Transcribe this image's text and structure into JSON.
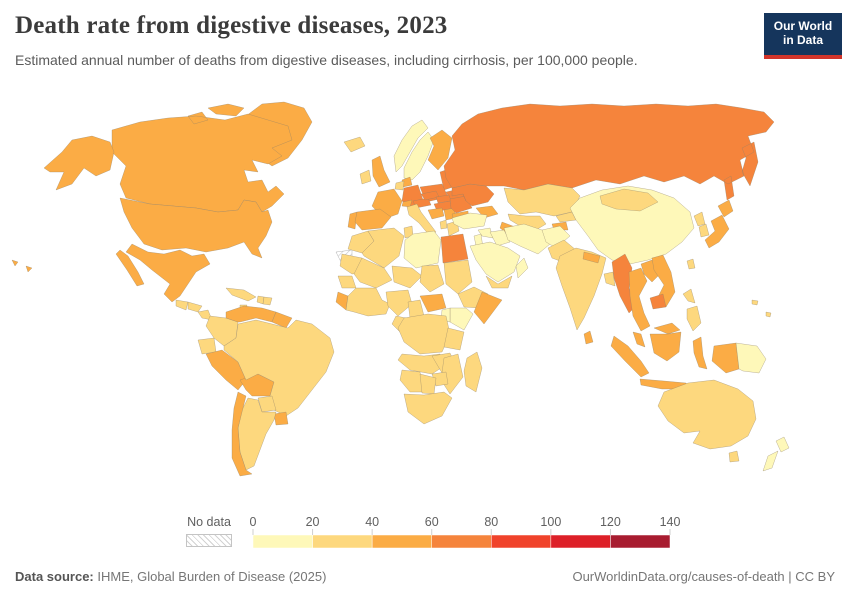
{
  "header": {
    "title": "Death rate from digestive diseases, 2023",
    "subtitle": "Estimated annual number of deaths from digestive diseases, including cirrhosis, per 100,000 people.",
    "logo": {
      "line1": "Our World",
      "line2": "in Data",
      "bg_color": "#15355c",
      "accent_color": "#d2342a"
    }
  },
  "legend": {
    "no_data_label": "No data"
  },
  "footer": {
    "source_label": "Data source:",
    "source_text": " IHME, Global Burden of Disease (2025)",
    "right_text": "OurWorldinData.org/causes-of-death | CC BY"
  },
  "chart_data": {
    "type": "choropleth",
    "title": "Death rate from digestive diseases, 2023",
    "unit": "deaths per 100,000 people",
    "year": 2023,
    "legend_ticks": [
      0,
      20,
      40,
      60,
      80,
      100,
      120,
      140
    ],
    "color_scale": {
      "bins": [
        {
          "min": 0,
          "max": 20,
          "color": "#FEF8B9"
        },
        {
          "min": 20,
          "max": 40,
          "color": "#FDD87E"
        },
        {
          "min": 40,
          "max": 60,
          "color": "#FBAC45"
        },
        {
          "min": 60,
          "max": 80,
          "color": "#F5843C"
        },
        {
          "min": 80,
          "max": 100,
          "color": "#F0432B"
        },
        {
          "min": 100,
          "max": 120,
          "color": "#DD2028"
        },
        {
          "min": 120,
          "max": 140,
          "color": "#A81C30"
        }
      ],
      "no_data": "hatched"
    },
    "no_data_regions": [
      "Western Sahara",
      "French Guiana"
    ],
    "countries": [
      {
        "name": "United States",
        "value": 50
      },
      {
        "name": "Canada",
        "value": 50
      },
      {
        "name": "Greenland",
        "value": 50
      },
      {
        "name": "Mexico",
        "value": 50
      },
      {
        "name": "Guatemala",
        "value": 30
      },
      {
        "name": "Honduras",
        "value": 30
      },
      {
        "name": "Nicaragua",
        "value": 30
      },
      {
        "name": "Panama",
        "value": 30
      },
      {
        "name": "Cuba",
        "value": 30
      },
      {
        "name": "Jamaica",
        "value": 30
      },
      {
        "name": "Haiti",
        "value": 30
      },
      {
        "name": "Dominican Republic",
        "value": 30
      },
      {
        "name": "Colombia",
        "value": 30
      },
      {
        "name": "Venezuela",
        "value": 50
      },
      {
        "name": "Guyana",
        "value": 50
      },
      {
        "name": "Ecuador",
        "value": 30
      },
      {
        "name": "Peru",
        "value": 50
      },
      {
        "name": "Bolivia",
        "value": 50
      },
      {
        "name": "Brazil",
        "value": 30
      },
      {
        "name": "Paraguay",
        "value": 30
      },
      {
        "name": "Uruguay",
        "value": 50
      },
      {
        "name": "Argentina",
        "value": 30
      },
      {
        "name": "Chile",
        "value": 50
      },
      {
        "name": "Iceland",
        "value": 30
      },
      {
        "name": "Ireland",
        "value": 30
      },
      {
        "name": "United Kingdom",
        "value": 50
      },
      {
        "name": "Portugal",
        "value": 50
      },
      {
        "name": "Spain",
        "value": 50
      },
      {
        "name": "France",
        "value": 50
      },
      {
        "name": "Netherlands",
        "value": 30
      },
      {
        "name": "Germany",
        "value": 70
      },
      {
        "name": "Denmark",
        "value": 50
      },
      {
        "name": "Norway",
        "value": 10
      },
      {
        "name": "Sweden",
        "value": 10
      },
      {
        "name": "Finland",
        "value": 50
      },
      {
        "name": "Lithuania",
        "value": 70
      },
      {
        "name": "Belarus",
        "value": 70
      },
      {
        "name": "Poland",
        "value": 70
      },
      {
        "name": "Czechia",
        "value": 70
      },
      {
        "name": "Slovakia",
        "value": 70
      },
      {
        "name": "Austria",
        "value": 70
      },
      {
        "name": "Switzerland",
        "value": 50
      },
      {
        "name": "Italy",
        "value": 30
      },
      {
        "name": "Croatia",
        "value": 50
      },
      {
        "name": "Serbia",
        "value": 50
      },
      {
        "name": "Albania",
        "value": 30
      },
      {
        "name": "Greece",
        "value": 30
      },
      {
        "name": "Bulgaria",
        "value": 50
      },
      {
        "name": "Hungary",
        "value": 70
      },
      {
        "name": "Romania",
        "value": 70
      },
      {
        "name": "Moldova",
        "value": 110
      },
      {
        "name": "Ukraine",
        "value": 70
      },
      {
        "name": "Russia",
        "value": 70
      },
      {
        "name": "Turkey",
        "value": 10
      },
      {
        "name": "Azerbaijan",
        "value": 50
      },
      {
        "name": "Syria",
        "value": 10
      },
      {
        "name": "Iraq",
        "value": 10
      },
      {
        "name": "Jordan",
        "value": 10
      },
      {
        "name": "Saudi Arabia",
        "value": 10
      },
      {
        "name": "Yemen",
        "value": 30
      },
      {
        "name": "Oman",
        "value": 10
      },
      {
        "name": "Iran",
        "value": 10
      },
      {
        "name": "Afghanistan",
        "value": 10
      },
      {
        "name": "Pakistan",
        "value": 30
      },
      {
        "name": "Kazakhstan",
        "value": 30
      },
      {
        "name": "Uzbekistan",
        "value": 30
      },
      {
        "name": "Turkmenistan",
        "value": 50
      },
      {
        "name": "Kyrgyzstan",
        "value": 30
      },
      {
        "name": "Tajikistan",
        "value": 50
      },
      {
        "name": "Morocco",
        "value": 30
      },
      {
        "name": "Algeria",
        "value": 30
      },
      {
        "name": "Tunisia",
        "value": 30
      },
      {
        "name": "Libya",
        "value": 10
      },
      {
        "name": "Egypt",
        "value": 70
      },
      {
        "name": "Mauritania",
        "value": 30
      },
      {
        "name": "Mali",
        "value": 30
      },
      {
        "name": "Niger",
        "value": 30
      },
      {
        "name": "Chad",
        "value": 30
      },
      {
        "name": "Sudan",
        "value": 30
      },
      {
        "name": "Ethiopia",
        "value": 30
      },
      {
        "name": "Somalia",
        "value": 50
      },
      {
        "name": "Kenya",
        "value": 10
      },
      {
        "name": "Uganda",
        "value": 10
      },
      {
        "name": "Senegal",
        "value": 30
      },
      {
        "name": "Sierra Leone",
        "value": 50
      },
      {
        "name": "Ghana",
        "value": 30
      },
      {
        "name": "Ivory Coast",
        "value": 30
      },
      {
        "name": "Nigeria",
        "value": 30
      },
      {
        "name": "Cameroon",
        "value": 30
      },
      {
        "name": "Central African Republic",
        "value": 50
      },
      {
        "name": "Congo",
        "value": 30
      },
      {
        "name": "DR Congo",
        "value": 30
      },
      {
        "name": "Tanzania",
        "value": 30
      },
      {
        "name": "Angola",
        "value": 30
      },
      {
        "name": "Zambia",
        "value": 30
      },
      {
        "name": "Mozambique",
        "value": 30
      },
      {
        "name": "Zimbabwe",
        "value": 30
      },
      {
        "name": "Namibia",
        "value": 30
      },
      {
        "name": "Botswana",
        "value": 30
      },
      {
        "name": "South Africa",
        "value": 30
      },
      {
        "name": "Madagascar",
        "value": 30
      },
      {
        "name": "India",
        "value": 30
      },
      {
        "name": "Nepal",
        "value": 50
      },
      {
        "name": "Bangladesh",
        "value": 30
      },
      {
        "name": "Sri Lanka",
        "value": 50
      },
      {
        "name": "China",
        "value": 10
      },
      {
        "name": "Mongolia",
        "value": 30
      },
      {
        "name": "North Korea",
        "value": 30
      },
      {
        "name": "South Korea",
        "value": 30
      },
      {
        "name": "Japan",
        "value": 50
      },
      {
        "name": "Taiwan",
        "value": 30
      },
      {
        "name": "Myanmar",
        "value": 70
      },
      {
        "name": "Thailand",
        "value": 50
      },
      {
        "name": "Laos",
        "value": 50
      },
      {
        "name": "Vietnam",
        "value": 50
      },
      {
        "name": "Cambodia",
        "value": 70
      },
      {
        "name": "Malaysia",
        "value": 50
      },
      {
        "name": "Indonesia",
        "value": 50
      },
      {
        "name": "Philippines",
        "value": 30
      },
      {
        "name": "Papua New Guinea",
        "value": 10
      },
      {
        "name": "Solomon Islands",
        "value": 30
      },
      {
        "name": "Australia",
        "value": 30
      },
      {
        "name": "New Zealand",
        "value": 10
      }
    ]
  }
}
